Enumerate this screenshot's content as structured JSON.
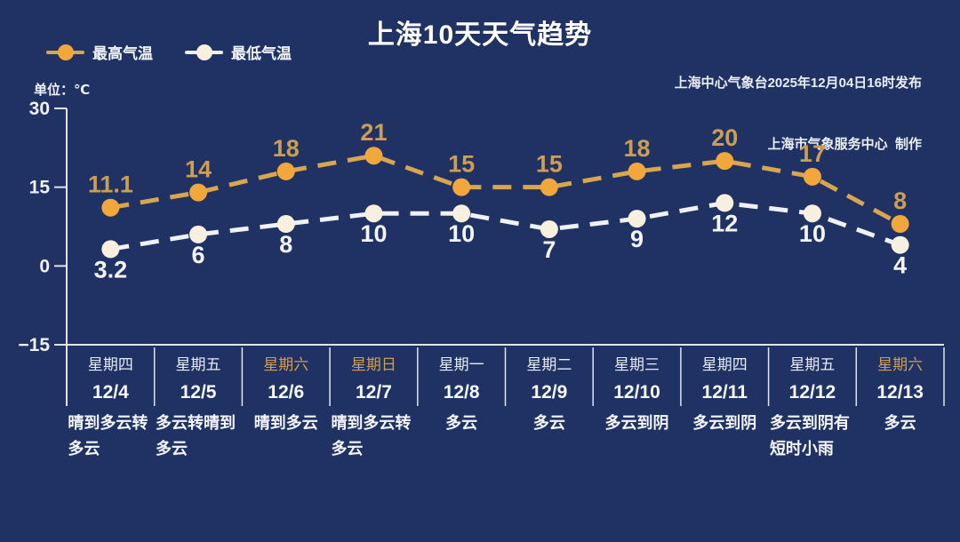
{
  "header": {
    "title": "上海10天天气趋势",
    "publisher_line1": "上海中心气象台2025年12月04日16时发布",
    "publisher_line2": "上海市气象服务中心  制作",
    "unit_label": "单位：℃"
  },
  "legend": [
    {
      "label": "最高气温",
      "marker_color": "#f2a73c",
      "line_color": "#d8a64f"
    },
    {
      "label": "最低气温",
      "marker_color": "#f7f0df",
      "line_color": "#eef1f6"
    }
  ],
  "colors": {
    "background": "#1f3263",
    "axis": "#dfe4ee",
    "tick_label": "#eef1f8",
    "high_line": "#d8a64f",
    "high_marker": "#f2a73c",
    "high_label": "#cd9d50",
    "low_line": "#eef1f6",
    "low_marker": "#f7f0df",
    "low_label": "#f3f5fb",
    "weekday_text": "#e7ebf7",
    "weekend_text": "#cf9e58",
    "date_text": "#f8f9fd",
    "weather_text": "#f5f6fb"
  },
  "chart_data": {
    "type": "line",
    "title": "上海10天天气趋势",
    "unit": "℃",
    "line_style": "dashed",
    "grid": false,
    "legend_position": "top-left",
    "ylim": [
      -15,
      30
    ],
    "yticks": [
      30,
      15,
      0,
      -15
    ],
    "categories": [
      "12/4",
      "12/5",
      "12/6",
      "12/7",
      "12/8",
      "12/9",
      "12/10",
      "12/11",
      "12/12",
      "12/13"
    ],
    "series": [
      {
        "name": "最高气温",
        "values": [
          11.1,
          14,
          18,
          21,
          15,
          15,
          18,
          20,
          17,
          8
        ]
      },
      {
        "name": "最低气温",
        "values": [
          3.2,
          6,
          8,
          10,
          10,
          7,
          9,
          12,
          10,
          4
        ]
      }
    ],
    "days": [
      {
        "weekday": "星期四",
        "date": "12/4",
        "weather": "晴到多云转多云",
        "weekend": false
      },
      {
        "weekday": "星期五",
        "date": "12/5",
        "weather": "多云转晴到多云",
        "weekend": false
      },
      {
        "weekday": "星期六",
        "date": "12/6",
        "weather": "晴到多云",
        "weekend": true
      },
      {
        "weekday": "星期日",
        "date": "12/7",
        "weather": "晴到多云转多云",
        "weekend": true
      },
      {
        "weekday": "星期一",
        "date": "12/8",
        "weather": "多云",
        "weekend": false
      },
      {
        "weekday": "星期二",
        "date": "12/9",
        "weather": "多云",
        "weekend": false
      },
      {
        "weekday": "星期三",
        "date": "12/10",
        "weather": "多云到阴",
        "weekend": false
      },
      {
        "weekday": "星期四",
        "date": "12/11",
        "weather": "多云到阴",
        "weekend": false
      },
      {
        "weekday": "星期五",
        "date": "12/12",
        "weather": "多云到阴有短时小雨",
        "weekend": false
      },
      {
        "weekday": "星期六",
        "date": "12/13",
        "weather": "多云",
        "weekend": true
      }
    ]
  }
}
